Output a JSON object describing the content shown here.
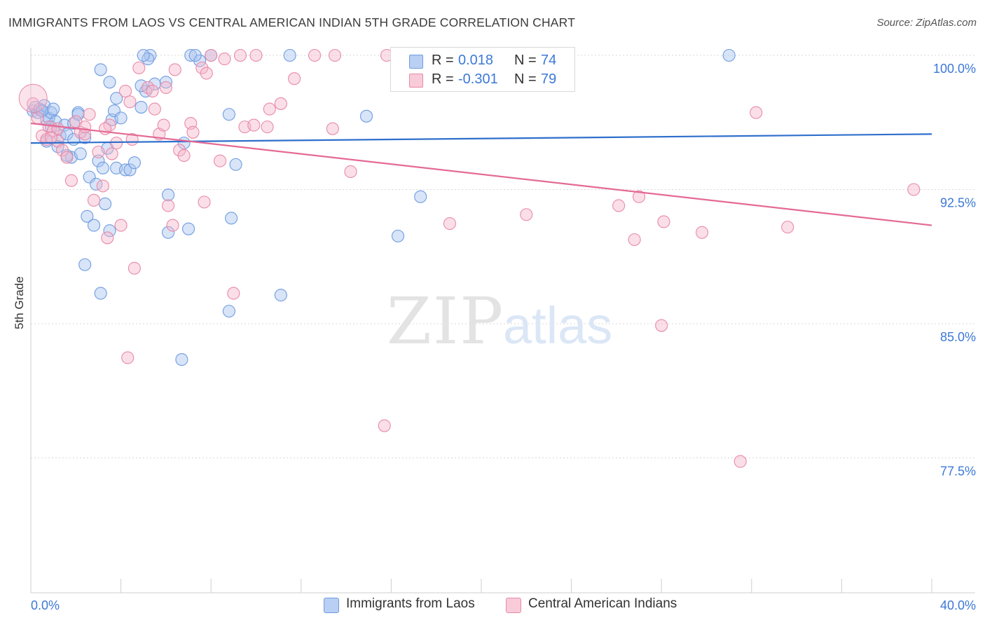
{
  "title": "IMMIGRANTS FROM LAOS VS CENTRAL AMERICAN INDIAN 5TH GRADE CORRELATION CHART",
  "source": "Source: ZipAtlas.com",
  "watermark": {
    "zip": "ZIP",
    "atlas": "atlas"
  },
  "legend": {
    "r_label": "R =",
    "n_label": "N =",
    "rows": [
      {
        "r": "0.018",
        "n": "74"
      },
      {
        "r": "-0.301",
        "n": "79"
      }
    ]
  },
  "colors": {
    "blue_fill": "#a8c4f0",
    "blue_stroke": "#6f9ce0",
    "blue_line": "#2f6fcc",
    "pink_fill": "#f5b8cc",
    "pink_stroke": "#e98aa8",
    "pink_line": "#e46a96",
    "axis_text": "#3c78d8"
  },
  "chart_data": {
    "type": "scatter",
    "title": "IMMIGRANTS FROM LAOS VS CENTRAL AMERICAN INDIAN 5TH GRADE CORRELATION CHART",
    "xlabel": "",
    "ylabel": "5th Grade",
    "xlim": [
      0,
      40
    ],
    "ylim": [
      70,
      100.8
    ],
    "x_tick_labels": [
      "0.0%",
      "40.0%"
    ],
    "y_ticks": [
      77.5,
      85.0,
      92.5,
      100.0
    ],
    "y_tick_labels": [
      "77.5%",
      "85.0%",
      "92.5%",
      "100.0%"
    ],
    "grid": "horizontal dashed",
    "legend_position": "top-center",
    "series": [
      {
        "name": "Immigrants from Laos",
        "R": 0.018,
        "N": 74,
        "trend": {
          "x": [
            0,
            40
          ],
          "y": [
            95.1,
            95.6
          ]
        },
        "points": [
          [
            0.1,
            96.9
          ],
          [
            0.2,
            97.1
          ],
          [
            0.3,
            96.8
          ],
          [
            0.4,
            97.0
          ],
          [
            0.5,
            96.9
          ],
          [
            0.6,
            97.2
          ],
          [
            0.7,
            96.4
          ],
          [
            0.8,
            96.5
          ],
          [
            0.9,
            96.8
          ],
          [
            1.0,
            97.0
          ],
          [
            0.7,
            95.2
          ],
          [
            0.9,
            96.0
          ],
          [
            1.1,
            96.3
          ],
          [
            1.3,
            95.5
          ],
          [
            1.5,
            96.1
          ],
          [
            1.6,
            95.6
          ],
          [
            1.8,
            94.3
          ],
          [
            1.9,
            96.2
          ],
          [
            2.1,
            96.8
          ],
          [
            2.2,
            94.5
          ],
          [
            1.2,
            94.9
          ],
          [
            2.4,
            95.4
          ],
          [
            2.5,
            91.0
          ],
          [
            2.6,
            93.2
          ],
          [
            2.8,
            90.5
          ],
          [
            2.9,
            92.8
          ],
          [
            3.0,
            94.1
          ],
          [
            3.1,
            86.7
          ],
          [
            3.2,
            93.7
          ],
          [
            3.3,
            91.7
          ],
          [
            3.4,
            94.8
          ],
          [
            3.5,
            90.2
          ],
          [
            3.6,
            96.4
          ],
          [
            3.7,
            96.9
          ],
          [
            3.8,
            93.7
          ],
          [
            4.0,
            96.5
          ],
          [
            4.2,
            93.6
          ],
          [
            4.4,
            93.6
          ],
          [
            4.6,
            94.0
          ],
          [
            4.9,
            97.1
          ],
          [
            5.1,
            98.0
          ],
          [
            5.3,
            100.0
          ],
          [
            5.5,
            98.4
          ],
          [
            6.1,
            92.2
          ],
          [
            6.1,
            90.1
          ],
          [
            6.7,
            83.0
          ],
          [
            6.8,
            95.1
          ],
          [
            7.0,
            90.3
          ],
          [
            7.1,
            100.0
          ],
          [
            7.5,
            99.7
          ],
          [
            8.8,
            85.7
          ],
          [
            8.8,
            96.7
          ],
          [
            8.9,
            90.9
          ],
          [
            9.1,
            93.9
          ],
          [
            11.1,
            86.6
          ],
          [
            11.5,
            100.0
          ],
          [
            14.9,
            96.6
          ],
          [
            16.3,
            89.9
          ],
          [
            17.3,
            92.1
          ],
          [
            31.0,
            100.0
          ],
          [
            3.1,
            99.2
          ],
          [
            3.5,
            98.5
          ],
          [
            4.9,
            98.3
          ],
          [
            5.2,
            99.8
          ],
          [
            5.0,
            100.0
          ],
          [
            6.0,
            98.5
          ],
          [
            7.3,
            100.0
          ],
          [
            8.0,
            100.0
          ],
          [
            3.8,
            97.6
          ],
          [
            2.4,
            88.3
          ],
          [
            1.6,
            94.4
          ],
          [
            0.5,
            96.9
          ],
          [
            2.1,
            96.7
          ],
          [
            1.9,
            95.3
          ]
        ]
      },
      {
        "name": "Central American Indians",
        "R": -0.301,
        "N": 79,
        "trend": {
          "x": [
            0,
            40
          ],
          "y": [
            96.2,
            90.5
          ]
        },
        "points": [
          [
            0.1,
            97.3
          ],
          [
            0.3,
            96.5
          ],
          [
            0.5,
            95.5
          ],
          [
            0.7,
            95.3
          ],
          [
            0.8,
            96.0
          ],
          [
            1.0,
            95.8
          ],
          [
            1.2,
            95.2
          ],
          [
            1.4,
            94.7
          ],
          [
            1.6,
            94.3
          ],
          [
            1.8,
            93.0
          ],
          [
            2.0,
            96.3
          ],
          [
            2.2,
            95.7
          ],
          [
            2.4,
            95.6
          ],
          [
            2.6,
            96.7
          ],
          [
            2.8,
            91.9
          ],
          [
            3.0,
            94.6
          ],
          [
            3.2,
            92.7
          ],
          [
            3.4,
            89.8
          ],
          [
            3.5,
            96.1
          ],
          [
            3.6,
            94.5
          ],
          [
            3.8,
            95.1
          ],
          [
            4.0,
            90.5
          ],
          [
            4.2,
            98.0
          ],
          [
            4.3,
            83.1
          ],
          [
            4.4,
            97.4
          ],
          [
            4.5,
            95.3
          ],
          [
            4.6,
            88.1
          ],
          [
            4.8,
            99.3
          ],
          [
            5.2,
            98.2
          ],
          [
            5.5,
            97.0
          ],
          [
            5.7,
            95.6
          ],
          [
            5.9,
            96.1
          ],
          [
            6.1,
            91.6
          ],
          [
            6.3,
            90.5
          ],
          [
            6.4,
            99.2
          ],
          [
            6.6,
            94.7
          ],
          [
            6.8,
            94.4
          ],
          [
            7.1,
            96.2
          ],
          [
            7.2,
            95.7
          ],
          [
            7.6,
            99.3
          ],
          [
            7.7,
            91.8
          ],
          [
            8.0,
            100.0
          ],
          [
            8.4,
            94.1
          ],
          [
            9.0,
            86.7
          ],
          [
            9.3,
            100.0
          ],
          [
            9.5,
            96.0
          ],
          [
            10.0,
            100.0
          ],
          [
            10.5,
            96.0
          ],
          [
            10.6,
            97.0
          ],
          [
            11.1,
            97.3
          ],
          [
            11.7,
            98.7
          ],
          [
            12.6,
            100.0
          ],
          [
            13.5,
            100.0
          ],
          [
            14.2,
            93.5
          ],
          [
            13.4,
            95.9
          ],
          [
            15.8,
            100.0
          ],
          [
            15.7,
            79.3
          ],
          [
            18.6,
            90.6
          ],
          [
            20.6,
            100.0
          ],
          [
            22.0,
            91.1
          ],
          [
            26.1,
            91.6
          ],
          [
            26.8,
            89.7
          ],
          [
            27.0,
            92.1
          ],
          [
            28.0,
            84.9
          ],
          [
            28.1,
            90.7
          ],
          [
            29.8,
            90.1
          ],
          [
            31.5,
            77.3
          ],
          [
            32.2,
            96.8
          ],
          [
            33.6,
            90.4
          ],
          [
            39.2,
            92.5
          ],
          [
            6.0,
            98.2
          ],
          [
            7.8,
            99.0
          ],
          [
            9.9,
            96.1
          ],
          [
            2.4,
            96.0
          ],
          [
            1.2,
            95.9
          ],
          [
            0.9,
            95.4
          ],
          [
            5.4,
            98.0
          ],
          [
            3.3,
            95.9
          ],
          [
            8.6,
            99.8
          ]
        ]
      }
    ]
  },
  "bottom_legend": [
    "Immigrants from Laos",
    "Central American Indians"
  ]
}
